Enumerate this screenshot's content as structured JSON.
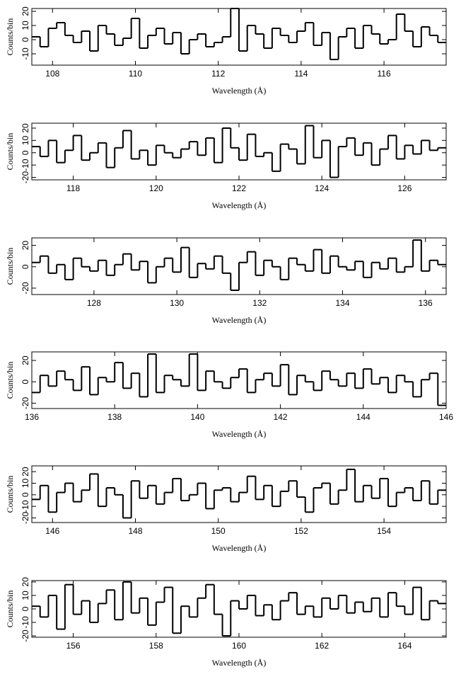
{
  "chart_data": [
    {
      "type": "histogram",
      "x_label": "Wavelength (Å)",
      "y_label": "Counts/bin",
      "xlim": [
        107.5,
        117.5
      ],
      "xticks": [
        108,
        110,
        112,
        114,
        116
      ],
      "ylim": [
        -18,
        22
      ],
      "yticks": [
        -10,
        0,
        10,
        20
      ],
      "color": "#000000",
      "bins": [
        107.5,
        107.7,
        107.9,
        108.1,
        108.3,
        108.5,
        108.7,
        108.9,
        109.1,
        109.3,
        109.5,
        109.7,
        109.9,
        110.1,
        110.3,
        110.5,
        110.7,
        110.9,
        111.1,
        111.3,
        111.5,
        111.7,
        111.9,
        112.1,
        112.3,
        112.5,
        112.7,
        112.9,
        113.1,
        113.3,
        113.5,
        113.7,
        113.9,
        114.1,
        114.3,
        114.5,
        114.7,
        114.9,
        115.1,
        115.3,
        115.5,
        115.7,
        115.9,
        116.1,
        116.3,
        116.5,
        116.7,
        116.9,
        117.1,
        117.3,
        117.5
      ],
      "values": [
        2,
        -5,
        8,
        12,
        3,
        -2,
        6,
        -8,
        10,
        4,
        -4,
        1,
        15,
        -6,
        3,
        8,
        -3,
        5,
        -10,
        0,
        4,
        -5,
        -2,
        2,
        22,
        -8,
        10,
        4,
        -6,
        8,
        3,
        -2,
        6,
        12,
        -4,
        5,
        -14,
        2,
        8,
        -6,
        10,
        4,
        -3,
        0,
        18,
        6,
        -5,
        9,
        3,
        -2
      ]
    },
    {
      "type": "histogram",
      "x_label": "Wavelength (Å)",
      "y_label": "Counts/bin",
      "xlim": [
        117,
        127
      ],
      "xticks": [
        118,
        120,
        122,
        124,
        126
      ],
      "ylim": [
        -22,
        24
      ],
      "yticks": [
        -20,
        -10,
        0,
        10,
        20
      ],
      "color": "#000000",
      "bins": [
        117,
        117.2,
        117.4,
        117.6,
        117.8,
        118,
        118.2,
        118.4,
        118.6,
        118.8,
        119,
        119.2,
        119.4,
        119.6,
        119.8,
        120,
        120.2,
        120.4,
        120.6,
        120.8,
        121,
        121.2,
        121.4,
        121.6,
        121.8,
        122,
        122.2,
        122.4,
        122.6,
        122.8,
        123,
        123.2,
        123.4,
        123.6,
        123.8,
        124,
        124.2,
        124.4,
        124.6,
        124.8,
        125,
        125.2,
        125.4,
        125.6,
        125.8,
        126,
        126.2,
        126.4,
        126.6,
        126.8,
        127
      ],
      "values": [
        5,
        -3,
        10,
        -8,
        2,
        14,
        -6,
        0,
        8,
        -12,
        4,
        18,
        -5,
        2,
        -10,
        6,
        0,
        -4,
        3,
        9,
        -2,
        12,
        -8,
        20,
        4,
        -6,
        15,
        -3,
        0,
        -15,
        7,
        3,
        -9,
        22,
        -4,
        10,
        -20,
        5,
        12,
        -2,
        8,
        -10,
        3,
        14,
        -5,
        6,
        -1,
        10,
        2,
        4
      ]
    },
    {
      "type": "histogram",
      "x_label": "Wavelength (Å)",
      "y_label": "Counts/bin",
      "xlim": [
        126.5,
        136.5
      ],
      "xticks": [
        128,
        130,
        132,
        134,
        136
      ],
      "ylim": [
        -26,
        27
      ],
      "yticks": [
        -20,
        0,
        20
      ],
      "color": "#000000",
      "bins": [
        126.5,
        126.7,
        126.9,
        127.1,
        127.3,
        127.5,
        127.7,
        127.9,
        128.1,
        128.3,
        128.5,
        128.7,
        128.9,
        129.1,
        129.3,
        129.5,
        129.7,
        129.9,
        130.1,
        130.3,
        130.5,
        130.7,
        130.9,
        131.1,
        131.3,
        131.5,
        131.7,
        131.9,
        132.1,
        132.3,
        132.5,
        132.7,
        132.9,
        133.1,
        133.3,
        133.5,
        133.7,
        133.9,
        134.1,
        134.3,
        134.5,
        134.7,
        134.9,
        135.1,
        135.3,
        135.5,
        135.7,
        135.9,
        136.1,
        136.3,
        136.5
      ],
      "values": [
        4,
        10,
        -6,
        2,
        -12,
        8,
        0,
        -4,
        6,
        -8,
        2,
        12,
        -3,
        5,
        -15,
        0,
        8,
        -5,
        18,
        -10,
        3,
        -2,
        10,
        -6,
        -22,
        4,
        14,
        -8,
        6,
        0,
        -12,
        8,
        2,
        -4,
        16,
        -6,
        10,
        0,
        -3,
        5,
        -10,
        4,
        -2,
        8,
        -5,
        0,
        25,
        -4,
        6,
        2
      ]
    },
    {
      "type": "histogram",
      "x_label": "Wavelength (Å)",
      "y_label": "Counts/bin",
      "xlim": [
        136,
        146
      ],
      "xticks": [
        136,
        138,
        140,
        142,
        144,
        146
      ],
      "ylim": [
        -25,
        28
      ],
      "yticks": [
        -20,
        0,
        20
      ],
      "color": "#000000",
      "bins": [
        136,
        136.2,
        136.4,
        136.6,
        136.8,
        137,
        137.2,
        137.4,
        137.6,
        137.8,
        138,
        138.2,
        138.4,
        138.6,
        138.8,
        139,
        139.2,
        139.4,
        139.6,
        139.8,
        140,
        140.2,
        140.4,
        140.6,
        140.8,
        141,
        141.2,
        141.4,
        141.6,
        141.8,
        142,
        142.2,
        142.4,
        142.6,
        142.8,
        143,
        143.2,
        143.4,
        143.6,
        143.8,
        144,
        144.2,
        144.4,
        144.6,
        144.8,
        145,
        145.2,
        145.4,
        145.6,
        145.8,
        146
      ],
      "values": [
        -10,
        6,
        -4,
        10,
        2,
        -8,
        14,
        -12,
        4,
        0,
        18,
        -6,
        8,
        -14,
        26,
        -10,
        6,
        2,
        -4,
        26,
        -8,
        10,
        0,
        -6,
        4,
        12,
        -10,
        2,
        8,
        -4,
        16,
        -12,
        6,
        0,
        -8,
        10,
        2,
        -4,
        8,
        -6,
        12,
        -2,
        4,
        -10,
        6,
        0,
        -14,
        2,
        8,
        -22
      ]
    },
    {
      "type": "histogram",
      "x_label": "Wavelength (Å)",
      "y_label": "Counts/bin",
      "xlim": [
        145.5,
        155.5
      ],
      "xticks": [
        146,
        148,
        150,
        152,
        154
      ],
      "ylim": [
        -24,
        25
      ],
      "yticks": [
        -20,
        -10,
        0,
        10,
        20
      ],
      "color": "#000000",
      "bins": [
        145.5,
        145.7,
        145.9,
        146.1,
        146.3,
        146.5,
        146.7,
        146.9,
        147.1,
        147.3,
        147.5,
        147.7,
        147.9,
        148.1,
        148.3,
        148.5,
        148.7,
        148.9,
        149.1,
        149.3,
        149.5,
        149.7,
        149.9,
        150.1,
        150.3,
        150.5,
        150.7,
        150.9,
        151.1,
        151.3,
        151.5,
        151.7,
        151.9,
        152.1,
        152.3,
        152.5,
        152.7,
        152.9,
        153.1,
        153.3,
        153.5,
        153.7,
        153.9,
        154.1,
        154.3,
        154.5,
        154.7,
        154.9,
        155.1,
        155.3,
        155.5
      ],
      "values": [
        -4,
        8,
        -15,
        2,
        10,
        -6,
        4,
        18,
        -10,
        6,
        0,
        -20,
        12,
        -3,
        8,
        -8,
        2,
        14,
        -5,
        0,
        10,
        -12,
        4,
        6,
        -6,
        2,
        16,
        -4,
        8,
        -10,
        3,
        12,
        -2,
        -15,
        6,
        10,
        -8,
        4,
        22,
        -6,
        8,
        -3,
        14,
        -10,
        2,
        6,
        -5,
        12,
        -8,
        4
      ]
    },
    {
      "type": "histogram",
      "x_label": "Wavelength (Å)",
      "y_label": "Counts/bin",
      "xlim": [
        155,
        165
      ],
      "xticks": [
        156,
        158,
        160,
        162,
        164
      ],
      "ylim": [
        -21,
        21
      ],
      "yticks": [
        -20,
        -10,
        0,
        10,
        20
      ],
      "color": "#000000",
      "bins": [
        155,
        155.2,
        155.4,
        155.6,
        155.8,
        156,
        156.2,
        156.4,
        156.6,
        156.8,
        157,
        157.2,
        157.4,
        157.6,
        157.8,
        158,
        158.2,
        158.4,
        158.6,
        158.8,
        159,
        159.2,
        159.4,
        159.6,
        159.8,
        160,
        160.2,
        160.4,
        160.6,
        160.8,
        161,
        161.2,
        161.4,
        161.6,
        161.8,
        162,
        162.2,
        162.4,
        162.6,
        162.8,
        163,
        163.2,
        163.4,
        163.6,
        163.8,
        164,
        164.2,
        164.4,
        164.6,
        164.8,
        165
      ],
      "values": [
        2,
        -6,
        10,
        -15,
        18,
        -4,
        6,
        -10,
        4,
        14,
        -8,
        20,
        -3,
        8,
        -12,
        5,
        16,
        -18,
        2,
        -6,
        8,
        18,
        -4,
        -20,
        6,
        0,
        10,
        -5,
        3,
        -8,
        6,
        12,
        -4,
        2,
        -6,
        8,
        0,
        10,
        -3,
        5,
        -2,
        8,
        -6,
        12,
        2,
        -4,
        16,
        -8,
        6,
        4
      ]
    }
  ]
}
